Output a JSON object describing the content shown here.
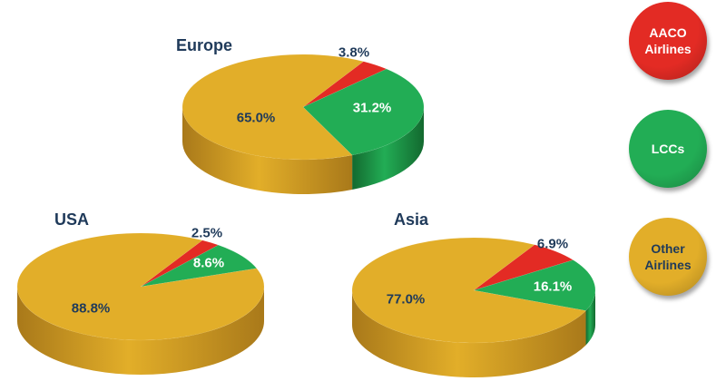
{
  "colors": {
    "aaco": "#e32b24",
    "aaco_dark": "#9a1611",
    "lcc": "#22ad55",
    "lcc_dark": "#13692f",
    "other": "#e2ae29",
    "other_dark": "#a9791a",
    "title": "#1f3a5a"
  },
  "legend": [
    {
      "line1": "AACO",
      "line2": "Airlines",
      "color": "#e32b24",
      "text_color": "#ffffff"
    },
    {
      "line1": "LCCs",
      "line2": "",
      "color": "#22ad55",
      "text_color": "#ffffff"
    },
    {
      "line1": "Other",
      "line2": "Airlines",
      "color": "#e2ae29",
      "text_color": "#1f3a5a"
    }
  ],
  "chart_data": [
    {
      "type": "pie",
      "title": "Europe",
      "slices": [
        {
          "series": "AACO Airlines",
          "value": 3.8,
          "label": "3.8%"
        },
        {
          "series": "LCCs",
          "value": 31.2,
          "label": "31.2%"
        },
        {
          "series": "Other Airlines",
          "value": 65.0,
          "label": "65.0%"
        }
      ]
    },
    {
      "type": "pie",
      "title": "USA",
      "slices": [
        {
          "series": "AACO Airlines",
          "value": 2.5,
          "label": "2.5%"
        },
        {
          "series": "LCCs",
          "value": 8.6,
          "label": "8.6%"
        },
        {
          "series": "Other Airlines",
          "value": 88.8,
          "label": "88.8%"
        }
      ]
    },
    {
      "type": "pie",
      "title": "Asia",
      "slices": [
        {
          "series": "AACO Airlines",
          "value": 6.9,
          "label": "6.9%"
        },
        {
          "series": "LCCs",
          "value": 16.1,
          "label": "16.1%"
        },
        {
          "series": "Other Airlines",
          "value": 77.0,
          "label": "77.0%"
        }
      ]
    }
  ]
}
